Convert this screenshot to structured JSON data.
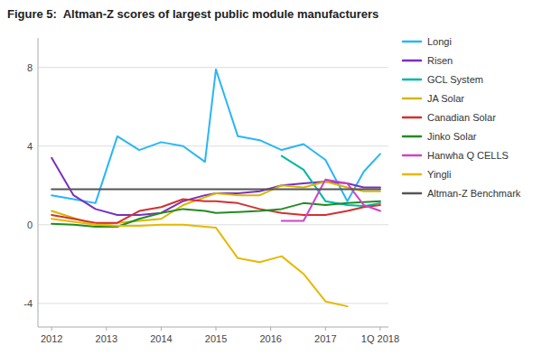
{
  "chart_data": {
    "type": "line",
    "title": "Figure 5:  Altman-Z scores of largest public module manufacturers",
    "x": [
      2012.0,
      2012.4,
      2012.8,
      2013.2,
      2013.6,
      2014.0,
      2014.4,
      2014.8,
      2015.0,
      2015.4,
      2015.8,
      2016.2,
      2016.6,
      2017.0,
      2017.4,
      2017.7,
      2018.0
    ],
    "xlim": [
      2011.75,
      2018.15
    ],
    "xticks": [
      2012,
      2013,
      2014,
      2015,
      2016,
      2017,
      {
        "value": 2018.0,
        "label": "1Q 2018"
      }
    ],
    "ylim": [
      -5.2,
      9.5
    ],
    "yticks": [
      -4,
      0,
      4,
      8
    ],
    "grid": true,
    "legend": "right",
    "series": [
      {
        "name": "Longi",
        "color": "#29b6f6",
        "values": [
          1.5,
          1.3,
          1.1,
          4.5,
          3.8,
          4.2,
          4.0,
          3.2,
          7.9,
          4.5,
          4.3,
          3.8,
          4.1,
          3.3,
          1.2,
          2.7,
          3.6
        ]
      },
      {
        "name": "Risen",
        "color": "#7b2fbe",
        "values": [
          3.4,
          1.5,
          0.8,
          0.5,
          0.5,
          0.6,
          1.2,
          1.5,
          1.6,
          1.6,
          1.7,
          2.0,
          2.1,
          2.2,
          2.1,
          1.9,
          1.9
        ]
      },
      {
        "name": "GCL System",
        "color": "#00b8a0",
        "values": [
          null,
          null,
          null,
          null,
          null,
          null,
          null,
          null,
          null,
          null,
          null,
          3.5,
          2.8,
          1.2,
          1.0,
          0.95,
          1.1
        ]
      },
      {
        "name": "JA Solar",
        "color": "#d4b800",
        "values": [
          0.7,
          0.35,
          0.0,
          0.1,
          0.2,
          0.3,
          1.0,
          1.4,
          1.6,
          1.5,
          1.5,
          2.0,
          1.9,
          2.2,
          1.9,
          1.7,
          1.7
        ]
      },
      {
        "name": "Canadian Solar",
        "color": "#d43030",
        "values": [
          0.5,
          0.3,
          0.1,
          0.1,
          0.7,
          0.9,
          1.3,
          1.2,
          1.2,
          1.1,
          0.8,
          0.6,
          0.5,
          0.5,
          0.7,
          0.9,
          1.0
        ]
      },
      {
        "name": "Jinko Solar",
        "color": "#228b22",
        "values": [
          0.05,
          0.0,
          -0.1,
          -0.1,
          0.3,
          0.6,
          0.8,
          0.7,
          0.6,
          0.65,
          0.7,
          0.8,
          1.1,
          1.0,
          1.1,
          1.15,
          1.2
        ]
      },
      {
        "name": "Hanwha Q CELLS",
        "color": "#cc44cc",
        "values": [
          null,
          null,
          null,
          null,
          null,
          null,
          null,
          null,
          null,
          null,
          null,
          0.2,
          0.2,
          2.3,
          2.1,
          1.0,
          0.7
        ]
      },
      {
        "name": "Yingli",
        "color": "#e6b800",
        "values": [
          0.3,
          0.15,
          0.0,
          -0.05,
          -0.05,
          0.0,
          0.0,
          -0.1,
          -0.15,
          -1.7,
          -1.9,
          -1.6,
          -2.5,
          -3.9,
          -4.15,
          null,
          null
        ]
      },
      {
        "name": "Altman-Z Benchmark",
        "color": "#555555",
        "values": [
          1.8,
          1.8,
          1.8,
          1.8,
          1.8,
          1.8,
          1.8,
          1.8,
          1.8,
          1.8,
          1.8,
          1.8,
          1.8,
          1.8,
          1.8,
          1.8,
          1.8
        ]
      }
    ]
  }
}
